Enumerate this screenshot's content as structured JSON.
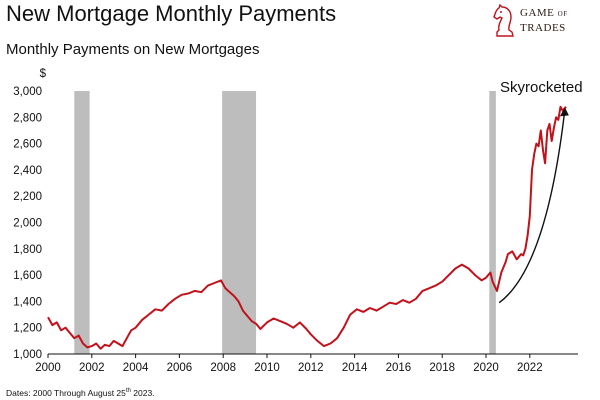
{
  "header": {
    "title": "New Mortgage Monthly Payments",
    "subtitle": "Monthly Payments on New Mortgages"
  },
  "logo": {
    "line1": "GAME",
    "line1_small": "OF",
    "line2": "TRADES",
    "icon": "chess-knight-icon"
  },
  "footnote": {
    "dates_prefix": "Dates: 2000 Through August 25",
    "dates_sup": "th",
    "dates_suffix": " 2023."
  },
  "colors": {
    "series": "#c1121c",
    "recession": "#bdbdbd",
    "arrow": "#111111"
  },
  "chart_data": {
    "type": "line",
    "title": "",
    "xlabel": "",
    "ylabel": "$",
    "xlim": [
      2000,
      2024.2
    ],
    "ylim": [
      1000,
      3000
    ],
    "grid": false,
    "x_ticks": [
      2000,
      2002,
      2004,
      2006,
      2008,
      2010,
      2012,
      2014,
      2016,
      2018,
      2020,
      2022
    ],
    "x_tick_labels": [
      "2000",
      "2002",
      "2004",
      "2006",
      "2008",
      "2010",
      "2012",
      "2014",
      "2016",
      "2018",
      "2020",
      "2022"
    ],
    "y_ticks": [
      1000,
      1200,
      1400,
      1600,
      1800,
      2000,
      2200,
      2400,
      2600,
      2800,
      3000
    ],
    "y_tick_labels": [
      "1,000",
      "1,200",
      "1,400",
      "1,600",
      "1,800",
      "2,000",
      "2,200",
      "2,400",
      "2,600",
      "2,800",
      "3,000"
    ],
    "recessions": [
      {
        "start": 2001.2,
        "end": 2001.9
      },
      {
        "start": 2007.95,
        "end": 2009.5
      },
      {
        "start": 2020.15,
        "end": 2020.45
      }
    ],
    "annotation": {
      "text": "Skyrocketed",
      "arrow_from": [
        2020.6,
        1390
      ],
      "arrow_to": [
        2023.6,
        2860
      ]
    },
    "series": [
      {
        "x": [
          2000.0,
          2000.2,
          2000.4,
          2000.6,
          2000.8,
          2001.0,
          2001.2,
          2001.4,
          2001.6,
          2001.8,
          2002.0,
          2002.2,
          2002.4,
          2002.6,
          2002.8,
          2003.0,
          2003.2,
          2003.4,
          2003.6,
          2003.8,
          2004.0,
          2004.3,
          2004.6,
          2004.9,
          2005.2,
          2005.5,
          2005.8,
          2006.1,
          2006.4,
          2006.7,
          2007.0,
          2007.3,
          2007.6,
          2007.9,
          2008.1,
          2008.3,
          2008.5,
          2008.7,
          2008.9,
          2009.1,
          2009.3,
          2009.5,
          2009.7,
          2010.0,
          2010.3,
          2010.6,
          2010.9,
          2011.2,
          2011.5,
          2011.8,
          2012.0,
          2012.3,
          2012.6,
          2012.9,
          2013.2,
          2013.5,
          2013.8,
          2014.1,
          2014.4,
          2014.7,
          2015.0,
          2015.3,
          2015.6,
          2015.9,
          2016.2,
          2016.5,
          2016.8,
          2017.1,
          2017.4,
          2017.7,
          2018.0,
          2018.3,
          2018.6,
          2018.9,
          2019.2,
          2019.5,
          2019.8,
          2020.0,
          2020.2,
          2020.3,
          2020.5,
          2020.7,
          2020.9,
          2021.0,
          2021.2,
          2021.4,
          2021.6,
          2021.7,
          2021.8,
          2021.9,
          2022.0,
          2022.1,
          2022.2,
          2022.3,
          2022.4,
          2022.5,
          2022.6,
          2022.7,
          2022.8,
          2022.9,
          2023.0,
          2023.1,
          2023.2,
          2023.3,
          2023.4,
          2023.5,
          2023.65
        ],
        "values": [
          1280,
          1220,
          1240,
          1180,
          1200,
          1160,
          1120,
          1140,
          1080,
          1050,
          1060,
          1080,
          1040,
          1070,
          1060,
          1100,
          1080,
          1060,
          1120,
          1180,
          1200,
          1260,
          1300,
          1340,
          1330,
          1380,
          1420,
          1450,
          1460,
          1480,
          1470,
          1520,
          1540,
          1560,
          1500,
          1470,
          1440,
          1400,
          1330,
          1290,
          1250,
          1230,
          1190,
          1240,
          1270,
          1250,
          1230,
          1200,
          1240,
          1190,
          1150,
          1100,
          1060,
          1080,
          1120,
          1200,
          1300,
          1340,
          1320,
          1350,
          1330,
          1360,
          1390,
          1380,
          1410,
          1390,
          1420,
          1480,
          1500,
          1520,
          1550,
          1600,
          1650,
          1680,
          1650,
          1600,
          1560,
          1580,
          1620,
          1550,
          1480,
          1620,
          1700,
          1760,
          1780,
          1720,
          1760,
          1750,
          1800,
          1900,
          2050,
          2400,
          2520,
          2600,
          2580,
          2700,
          2550,
          2450,
          2700,
          2750,
          2620,
          2720,
          2800,
          2780,
          2880,
          2850,
          2880
        ]
      }
    ]
  }
}
